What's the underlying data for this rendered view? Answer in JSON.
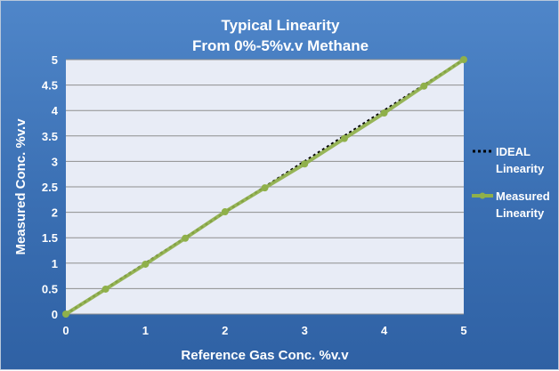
{
  "chart_data": {
    "type": "line",
    "title": "Typical Linearity",
    "subtitle": "From 0%-5%v.v Methane",
    "xlabel": "Reference Gas Conc. %v.v",
    "ylabel": "Measured Conc.  %v.v",
    "xlim": [
      0,
      5
    ],
    "ylim": [
      0,
      5
    ],
    "xticks": [
      "0",
      "1",
      "2",
      "3",
      "4",
      "5"
    ],
    "yticks": [
      "0",
      "0.5",
      "1",
      "1.5",
      "2",
      "2.5",
      "3",
      "3.5",
      "4",
      "4.5",
      "5"
    ],
    "grid": true,
    "legend_position": "right",
    "series": [
      {
        "name": "IDEAL Linearity",
        "style": "dotted",
        "color": "#000000",
        "x": [
          0,
          5
        ],
        "y": [
          0,
          5
        ]
      },
      {
        "name": "Measured Linearity",
        "style": "solid-with-markers",
        "color": "#8fb04a",
        "x": [
          0,
          0.5,
          1,
          1.5,
          2,
          2.5,
          3,
          3.5,
          4,
          4.5,
          5
        ],
        "y": [
          0,
          0.49,
          0.98,
          1.49,
          2.01,
          2.48,
          2.95,
          3.45,
          3.95,
          4.48,
          5.0
        ]
      }
    ]
  },
  "legend": {
    "ideal_label": "IDEAL Linearity",
    "measured_label": "Measured Linearity"
  },
  "colors": {
    "background": "#3f76bb",
    "plot_area": "#e8ecf6",
    "gridline": "#8e8e8e",
    "text": "#ffffff"
  }
}
